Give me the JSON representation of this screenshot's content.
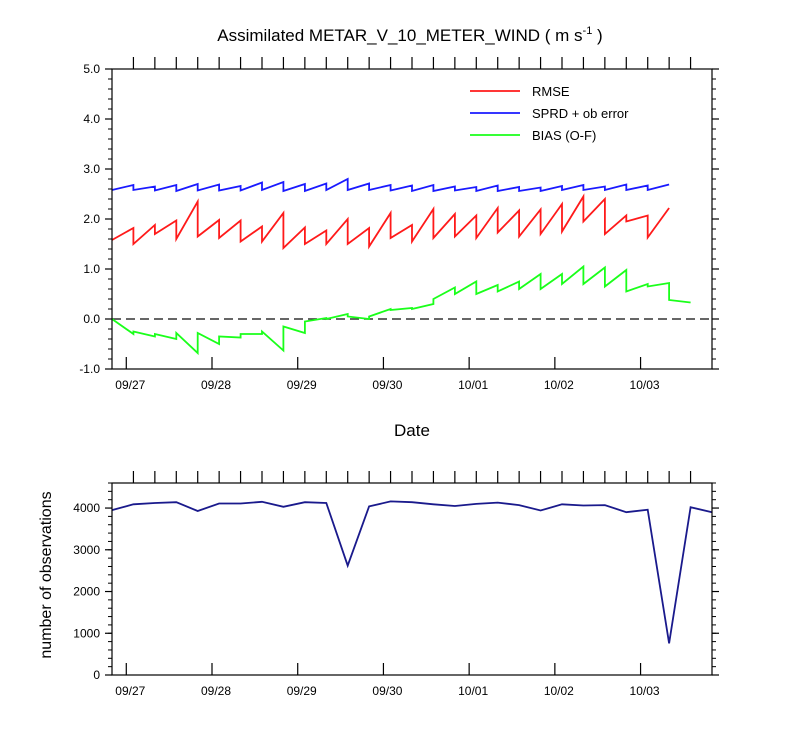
{
  "chart_data": [
    {
      "type": "line",
      "title": "Assimilated METAR_V_10_METER_WIND ( m s",
      "title_superscript": "-1",
      "title_suffix": " )",
      "xlabel": "Date",
      "ylabel": "",
      "ylim": [
        -1.0,
        5.0
      ],
      "xlim": [
        0,
        42
      ],
      "yticks": [
        -1.0,
        0.0,
        1.0,
        2.0,
        3.0,
        4.0,
        5.0
      ],
      "ytick_labels": [
        "-1.0",
        "0.0",
        "1.0",
        "2.0",
        "3.0",
        "4.0",
        "5.0"
      ],
      "xtick_positions": [
        1,
        7,
        13,
        19,
        25,
        31,
        37
      ],
      "xtick_labels": [
        "09/27",
        "09/28",
        "09/29",
        "09/30",
        "10/01",
        "10/02",
        "10/03"
      ],
      "reference_line": {
        "y": 0.0,
        "style": "dashed",
        "color": "#333333"
      },
      "legend": {
        "position": "top-right"
      },
      "series": [
        {
          "name": "RMSE",
          "color": "#ff1a1a",
          "points": [
            [
              0,
              1.58
            ],
            [
              1.5,
              1.82
            ],
            [
              1.5,
              1.5
            ],
            [
              3,
              1.88
            ],
            [
              3,
              1.7
            ],
            [
              4.5,
              1.97
            ],
            [
              4.5,
              1.6
            ],
            [
              6,
              2.35
            ],
            [
              6,
              1.65
            ],
            [
              7.5,
              1.98
            ],
            [
              7.5,
              1.62
            ],
            [
              9,
              1.97
            ],
            [
              9,
              1.55
            ],
            [
              10.5,
              1.85
            ],
            [
              10.5,
              1.55
            ],
            [
              12,
              2.12
            ],
            [
              12,
              1.42
            ],
            [
              13.5,
              1.83
            ],
            [
              13.5,
              1.5
            ],
            [
              15,
              1.77
            ],
            [
              15,
              1.5
            ],
            [
              16.5,
              2.0
            ],
            [
              16.5,
              1.5
            ],
            [
              18,
              1.82
            ],
            [
              18,
              1.45
            ],
            [
              19.5,
              2.12
            ],
            [
              19.5,
              1.62
            ],
            [
              21,
              1.88
            ],
            [
              21,
              1.55
            ],
            [
              22.5,
              2.2
            ],
            [
              22.5,
              1.62
            ],
            [
              24,
              2.1
            ],
            [
              24,
              1.65
            ],
            [
              25.5,
              2.07
            ],
            [
              25.5,
              1.62
            ],
            [
              27,
              2.22
            ],
            [
              27,
              1.73
            ],
            [
              28.5,
              2.17
            ],
            [
              28.5,
              1.65
            ],
            [
              30,
              2.19
            ],
            [
              30,
              1.7
            ],
            [
              31.5,
              2.3
            ],
            [
              31.5,
              1.75
            ],
            [
              33,
              2.45
            ],
            [
              33,
              1.95
            ],
            [
              34.5,
              2.4
            ],
            [
              34.5,
              1.7
            ],
            [
              36,
              2.07
            ],
            [
              36,
              1.95
            ],
            [
              37.5,
              2.07
            ],
            [
              37.5,
              1.63
            ],
            [
              39,
              2.22
            ]
          ]
        },
        {
          "name": "SPRD + ob error",
          "color": "#1a1aff",
          "points": [
            [
              0,
              2.58
            ],
            [
              1.5,
              2.68
            ],
            [
              1.5,
              2.58
            ],
            [
              3,
              2.65
            ],
            [
              3,
              2.57
            ],
            [
              4.5,
              2.68
            ],
            [
              4.5,
              2.56
            ],
            [
              6,
              2.7
            ],
            [
              6,
              2.57
            ],
            [
              7.5,
              2.69
            ],
            [
              7.5,
              2.57
            ],
            [
              9,
              2.66
            ],
            [
              9,
              2.57
            ],
            [
              10.5,
              2.73
            ],
            [
              10.5,
              2.58
            ],
            [
              12,
              2.74
            ],
            [
              12,
              2.56
            ],
            [
              13.5,
              2.7
            ],
            [
              13.5,
              2.56
            ],
            [
              15,
              2.71
            ],
            [
              15,
              2.58
            ],
            [
              16.5,
              2.8
            ],
            [
              16.5,
              2.58
            ],
            [
              18,
              2.71
            ],
            [
              18,
              2.58
            ],
            [
              19.5,
              2.68
            ],
            [
              19.5,
              2.57
            ],
            [
              21,
              2.67
            ],
            [
              21,
              2.56
            ],
            [
              22.5,
              2.68
            ],
            [
              22.5,
              2.56
            ],
            [
              24,
              2.65
            ],
            [
              24,
              2.57
            ],
            [
              25.5,
              2.64
            ],
            [
              25.5,
              2.56
            ],
            [
              27,
              2.67
            ],
            [
              27,
              2.56
            ],
            [
              28.5,
              2.64
            ],
            [
              28.5,
              2.56
            ],
            [
              30,
              2.63
            ],
            [
              30,
              2.56
            ],
            [
              31.5,
              2.66
            ],
            [
              31.5,
              2.58
            ],
            [
              33,
              2.68
            ],
            [
              33,
              2.58
            ],
            [
              34.5,
              2.65
            ],
            [
              34.5,
              2.58
            ],
            [
              36,
              2.69
            ],
            [
              36,
              2.58
            ],
            [
              37.5,
              2.67
            ],
            [
              37.5,
              2.58
            ],
            [
              39,
              2.69
            ]
          ]
        },
        {
          "name": "BIAS (O-F)",
          "color": "#1aff1a",
          "points": [
            [
              0,
              0.0
            ],
            [
              1.5,
              -0.3
            ],
            [
              1.5,
              -0.25
            ],
            [
              3,
              -0.35
            ],
            [
              3,
              -0.3
            ],
            [
              4.5,
              -0.4
            ],
            [
              4.5,
              -0.28
            ],
            [
              6,
              -0.68
            ],
            [
              6,
              -0.28
            ],
            [
              7.5,
              -0.5
            ],
            [
              7.5,
              -0.35
            ],
            [
              9,
              -0.37
            ],
            [
              9,
              -0.3
            ],
            [
              10.5,
              -0.3
            ],
            [
              10.5,
              -0.25
            ],
            [
              12,
              -0.63
            ],
            [
              12,
              -0.15
            ],
            [
              13.5,
              -0.28
            ],
            [
              13.5,
              -0.05
            ],
            [
              15,
              0.02
            ],
            [
              15,
              0.0
            ],
            [
              16.5,
              0.1
            ],
            [
              16.5,
              0.05
            ],
            [
              18,
              0.0
            ],
            [
              18,
              0.05
            ],
            [
              19.5,
              0.2
            ],
            [
              19.5,
              0.18
            ],
            [
              21,
              0.22
            ],
            [
              21,
              0.2
            ],
            [
              22.5,
              0.3
            ],
            [
              22.5,
              0.4
            ],
            [
              24,
              0.63
            ],
            [
              24,
              0.5
            ],
            [
              25.5,
              0.75
            ],
            [
              25.5,
              0.5
            ],
            [
              27,
              0.68
            ],
            [
              27,
              0.55
            ],
            [
              28.5,
              0.75
            ],
            [
              28.5,
              0.6
            ],
            [
              30,
              0.9
            ],
            [
              30,
              0.6
            ],
            [
              31.5,
              0.9
            ],
            [
              31.5,
              0.7
            ],
            [
              33,
              1.05
            ],
            [
              33,
              0.7
            ],
            [
              34.5,
              1.03
            ],
            [
              34.5,
              0.65
            ],
            [
              36,
              0.98
            ],
            [
              36,
              0.55
            ],
            [
              37.5,
              0.7
            ],
            [
              37.5,
              0.65
            ],
            [
              39,
              0.72
            ],
            [
              39,
              0.38
            ],
            [
              40.5,
              0.33
            ]
          ]
        }
      ]
    },
    {
      "type": "line",
      "title": "",
      "xlabel": "",
      "ylabel": "number of observations",
      "ylim": [
        0,
        4600
      ],
      "xlim": [
        0,
        42
      ],
      "yticks": [
        0,
        1000,
        2000,
        3000,
        4000
      ],
      "ytick_labels": [
        "0",
        "1000",
        "2000",
        "3000",
        "4000"
      ],
      "xtick_positions": [
        1,
        7,
        13,
        19,
        25,
        31,
        37
      ],
      "xtick_labels": [
        "09/27",
        "09/28",
        "09/29",
        "09/30",
        "10/01",
        "10/02",
        "10/03"
      ],
      "series": [
        {
          "name": "number of observations",
          "color": "#1a1a8c",
          "points": [
            [
              0,
              3950
            ],
            [
              1.5,
              4090
            ],
            [
              3,
              4120
            ],
            [
              4.5,
              4140
            ],
            [
              6,
              3930
            ],
            [
              7.5,
              4110
            ],
            [
              9,
              4110
            ],
            [
              10.5,
              4150
            ],
            [
              12,
              4030
            ],
            [
              13.5,
              4140
            ],
            [
              15,
              4120
            ],
            [
              16.5,
              2620
            ],
            [
              18,
              4040
            ],
            [
              19.5,
              4160
            ],
            [
              21,
              4140
            ],
            [
              22.5,
              4090
            ],
            [
              24,
              4050
            ],
            [
              25.5,
              4100
            ],
            [
              27,
              4130
            ],
            [
              28.5,
              4070
            ],
            [
              30,
              3940
            ],
            [
              31.5,
              4090
            ],
            [
              33,
              4060
            ],
            [
              34.5,
              4070
            ],
            [
              36,
              3900
            ],
            [
              37.5,
              3960
            ],
            [
              39,
              760
            ],
            [
              40.5,
              4020
            ],
            [
              42,
              3900
            ]
          ]
        }
      ]
    }
  ]
}
